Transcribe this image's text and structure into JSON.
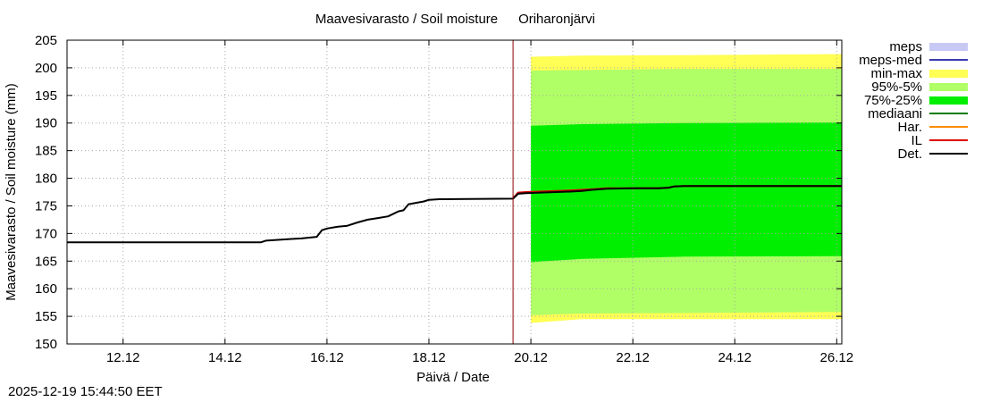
{
  "chart_data": {
    "type": "area",
    "title": "Maavesivarasto / Soil moisture",
    "station": "Oriharonjärvi",
    "xlabel": "Päivä / Date",
    "ylabel": "Maavesivarasto / Soil moisture (mm)",
    "ylim": [
      150,
      205
    ],
    "xlim_days": [
      10.9,
      26.1
    ],
    "y_ticks": [
      150,
      155,
      160,
      165,
      170,
      175,
      180,
      185,
      190,
      195,
      200,
      205
    ],
    "x_ticks": [
      {
        "day": 12,
        "label": "12.12"
      },
      {
        "day": 14,
        "label": "14.12"
      },
      {
        "day": 16,
        "label": "16.12"
      },
      {
        "day": 18,
        "label": "18.12"
      },
      {
        "day": 20,
        "label": "20.12"
      },
      {
        "day": 22,
        "label": "22.12"
      },
      {
        "day": 24,
        "label": "24.12"
      },
      {
        "day": 26,
        "label": "26.12"
      }
    ],
    "forecast_start_day": 19.65,
    "grid": true,
    "legend_position": "right",
    "legend": [
      {
        "key": "meps",
        "label": "meps",
        "color": "#c8c8f5",
        "style": "box"
      },
      {
        "key": "meps_med",
        "label": "meps-med",
        "color": "#3a3ab0",
        "style": "line"
      },
      {
        "key": "min_max",
        "label": "min-max",
        "color": "#ffff55",
        "style": "box"
      },
      {
        "key": "p95_5",
        "label": "95%-5%",
        "color": "#b0ff66",
        "style": "box"
      },
      {
        "key": "p75_25",
        "label": "75%-25%",
        "color": "#00ee00",
        "style": "box"
      },
      {
        "key": "median",
        "label": "mediaani",
        "color": "#007a00",
        "style": "line"
      },
      {
        "key": "har",
        "label": "Har.",
        "color": "#ff8c00",
        "style": "line"
      },
      {
        "key": "il",
        "label": "IL",
        "color": "#dd0000",
        "style": "line"
      },
      {
        "key": "det",
        "label": "Det.",
        "color": "#000000",
        "style": "line"
      }
    ],
    "bands": [
      {
        "key": "min_max",
        "color": "#ffff55",
        "x": [
          20.0,
          21.0,
          23.0,
          26.1
        ],
        "low": [
          153.8,
          154.5,
          154.5,
          154.5
        ],
        "high": [
          202.0,
          202.2,
          202.3,
          202.5
        ]
      },
      {
        "key": "p95_5",
        "color": "#b0ff66",
        "x": [
          20.0,
          21.0,
          23.0,
          26.1
        ],
        "low": [
          155.2,
          155.5,
          155.6,
          155.8
        ],
        "high": [
          199.5,
          199.6,
          199.8,
          199.8
        ]
      },
      {
        "key": "p75_25",
        "color": "#00ee00",
        "x": [
          20.0,
          21.0,
          23.0,
          26.1
        ],
        "low": [
          164.8,
          165.4,
          165.8,
          165.9
        ],
        "high": [
          189.5,
          189.8,
          190.0,
          190.1
        ]
      }
    ],
    "series": [
      {
        "key": "det",
        "name": "Det.",
        "color": "#000000",
        "x": [
          10.9,
          14.7,
          14.8,
          15.3,
          15.5,
          15.8,
          15.9,
          16.0,
          16.2,
          16.4,
          16.6,
          16.8,
          17.0,
          17.2,
          17.4,
          17.5,
          17.6,
          17.9,
          18.0,
          18.2,
          19.65,
          19.75,
          19.9,
          20.2,
          20.5,
          20.8,
          21.0,
          21.2,
          21.5,
          22.0,
          22.5,
          22.7,
          22.8,
          23.0,
          24.0,
          25.0,
          26.1
        ],
        "y": [
          168.4,
          168.4,
          168.7,
          169.0,
          169.1,
          169.4,
          170.6,
          170.9,
          171.2,
          171.4,
          172.0,
          172.5,
          172.8,
          173.1,
          174.0,
          174.2,
          175.3,
          175.8,
          176.1,
          176.2,
          176.3,
          177.2,
          177.3,
          177.4,
          177.5,
          177.6,
          177.7,
          177.9,
          178.1,
          178.2,
          178.2,
          178.3,
          178.5,
          178.6,
          178.6,
          178.6,
          178.6
        ]
      },
      {
        "key": "il",
        "name": "IL",
        "color": "#dd0000",
        "x": [
          19.65,
          19.75,
          19.9,
          20.2,
          20.5,
          20.8,
          21.0,
          21.2,
          21.5,
          22.0,
          22.5,
          22.7,
          22.8,
          23.0,
          24.0,
          25.0,
          26.1
        ],
        "y": [
          176.4,
          177.4,
          177.5,
          177.6,
          177.7,
          177.8,
          177.9,
          178.0,
          178.2,
          178.2,
          178.2,
          178.3,
          178.5,
          178.6,
          178.6,
          178.6,
          178.6
        ]
      }
    ]
  },
  "timestamp": "2025-12-19 15:44:50 EET"
}
